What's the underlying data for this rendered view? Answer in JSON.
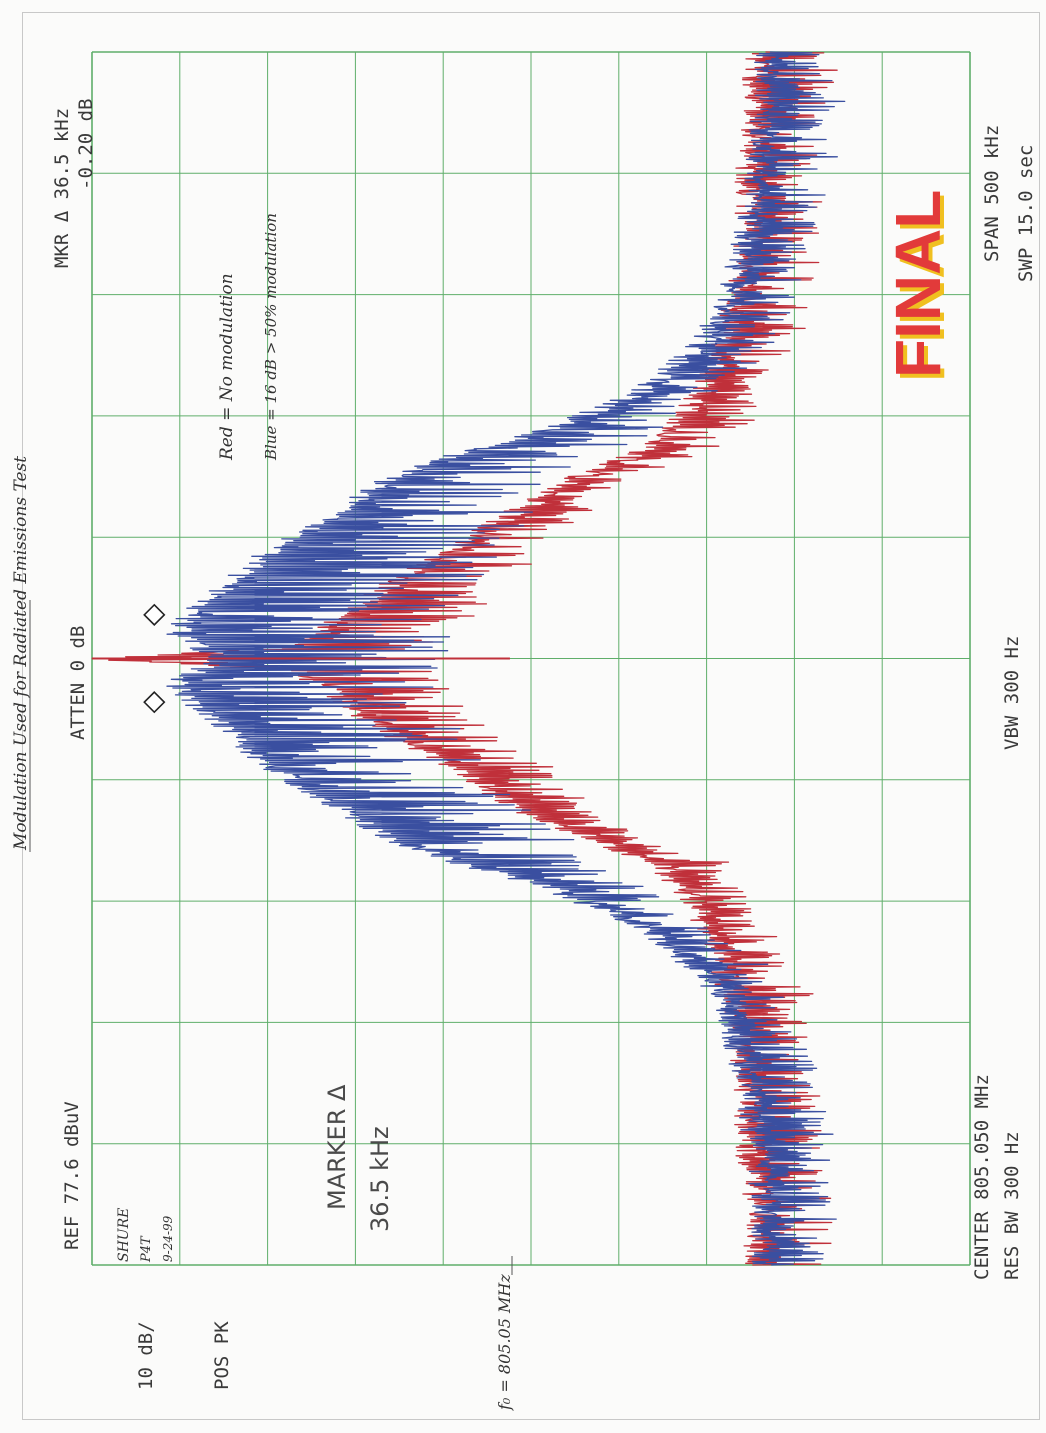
{
  "chart_data": {
    "type": "line",
    "title": "Modulation Used for Radiated Emissions Test",
    "xlabel": "",
    "ylabel": "",
    "xlim": [
      804.8,
      805.3
    ],
    "ylim": [
      -22.4,
      77.6
    ],
    "x_unit": "MHz",
    "y_unit": "dBuV",
    "grid": true,
    "orientation": "rotated-90-clockwise",
    "series": [
      {
        "name": "Red",
        "color": "#c0303a",
        "description_label": "Red = No modulation",
        "points": [
          [
            804.8,
            2
          ],
          [
            804.825,
            2
          ],
          [
            804.85,
            3
          ],
          [
            804.875,
            3
          ],
          [
            804.9,
            4
          ],
          [
            804.925,
            6
          ],
          [
            804.95,
            9
          ],
          [
            804.965,
            13
          ],
          [
            804.975,
            20
          ],
          [
            804.985,
            27
          ],
          [
            804.995,
            32
          ],
          [
            805.005,
            36
          ],
          [
            805.015,
            42
          ],
          [
            805.025,
            46
          ],
          [
            805.035,
            50
          ],
          [
            805.045,
            54
          ],
          [
            805.05,
            77.6
          ],
          [
            805.055,
            54
          ],
          [
            805.065,
            50
          ],
          [
            805.075,
            46
          ],
          [
            805.085,
            42
          ],
          [
            805.095,
            36
          ],
          [
            805.105,
            32
          ],
          [
            805.115,
            27
          ],
          [
            805.125,
            22
          ],
          [
            805.135,
            15
          ],
          [
            805.15,
            10
          ],
          [
            805.175,
            6
          ],
          [
            805.2,
            4
          ],
          [
            805.225,
            3
          ],
          [
            805.25,
            3
          ],
          [
            805.275,
            2
          ],
          [
            805.3,
            2
          ]
        ]
      },
      {
        "name": "Blue",
        "color": "#3a4fa0",
        "description_label": "Blue = 16 dB > 50% modulation",
        "points": [
          [
            804.8,
            1
          ],
          [
            804.825,
            1
          ],
          [
            804.85,
            2
          ],
          [
            804.875,
            3
          ],
          [
            804.9,
            5
          ],
          [
            804.92,
            8
          ],
          [
            804.94,
            15
          ],
          [
            804.955,
            25
          ],
          [
            804.965,
            35
          ],
          [
            804.975,
            43
          ],
          [
            804.99,
            50
          ],
          [
            805.005,
            57
          ],
          [
            805.02,
            62
          ],
          [
            805.03,
            66
          ],
          [
            805.04,
            68
          ],
          [
            805.05,
            63
          ],
          [
            805.06,
            68
          ],
          [
            805.07,
            66
          ],
          [
            805.08,
            62
          ],
          [
            805.095,
            57
          ],
          [
            805.11,
            50
          ],
          [
            805.125,
            43
          ],
          [
            805.135,
            35
          ],
          [
            805.145,
            25
          ],
          [
            805.16,
            15
          ],
          [
            805.18,
            8
          ],
          [
            805.2,
            5
          ],
          [
            805.225,
            3
          ],
          [
            805.25,
            2
          ],
          [
            805.275,
            1
          ],
          [
            805.3,
            1
          ]
        ]
      }
    ],
    "markers": [
      {
        "label": "left-diamond",
        "x": 805.032,
        "y": 68
      },
      {
        "label": "right-diamond",
        "x": 805.068,
        "y": 68
      }
    ]
  },
  "instrument": {
    "mkr_delta": "MKR Δ  36.5 kHz",
    "mkr_delta_db": "-0.20 dB",
    "atten": "ATTEN 0 dB",
    "ref": "REF  77.6 dBuV",
    "scale": "10 dB/",
    "detector": "POS PK",
    "marker_delta_label": "MARKER Δ",
    "marker_delta_value": "36.5 kHz",
    "center": "CENTER 805.050 MHz",
    "res_bw": "RES BW 300  Hz",
    "vbw": "VBW 300  Hz",
    "span": "SPAN 500 kHz",
    "swp": "SWP 15.0  sec"
  },
  "annotations": {
    "title": "Modulation Used for Radiated Emissions Test",
    "red_legend": "Red = No modulation",
    "blue_legend": "Blue = 16 dB > 50% modulation",
    "signature_name": "SHURE",
    "signature_init": "P4T",
    "signature_date": "9-24-99",
    "f0": "f₀ = 805.05 MHz",
    "stamp": "FINAL"
  },
  "colors": {
    "grid": "#5fae6a",
    "red_trace": "#c0303a",
    "blue_trace": "#3a4fa0",
    "stamp_red": "#e23a3a",
    "stamp_yellow": "#f0c020"
  }
}
